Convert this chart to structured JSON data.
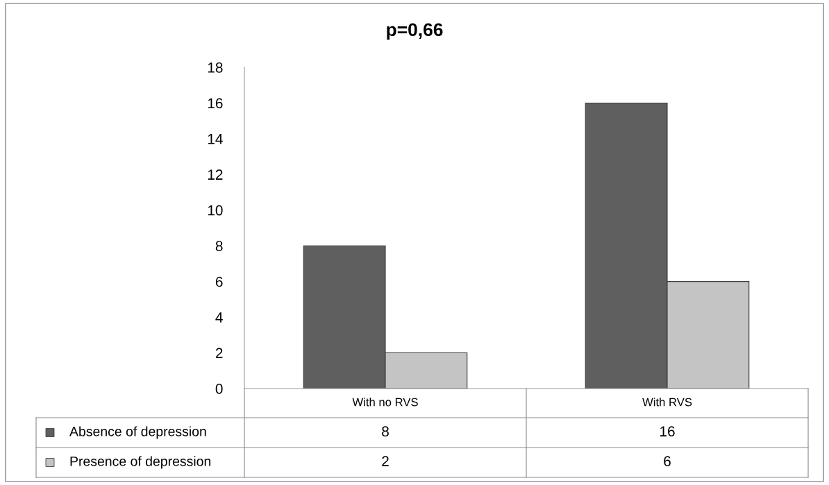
{
  "chart_data": {
    "type": "bar",
    "title": "p=0,66",
    "categories": [
      "With no RVS",
      "With RVS"
    ],
    "series": [
      {
        "name": "Absence of depression",
        "color": "#5f5f5f",
        "values": [
          8,
          16
        ]
      },
      {
        "name": "Presence of depression",
        "color": "#c4c4c4",
        "values": [
          2,
          6
        ]
      }
    ],
    "ylim": [
      0,
      18
    ],
    "yticks": [
      0,
      2,
      4,
      6,
      8,
      10,
      12,
      14,
      16,
      18
    ],
    "grid": false,
    "legend": "bottom",
    "data_labels": true
  }
}
